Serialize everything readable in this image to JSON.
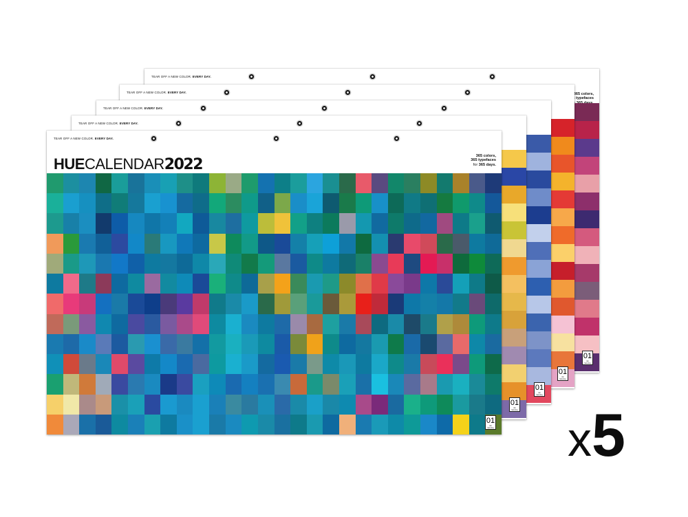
{
  "tagline": {
    "prefix": "TEAR OFF A NEW COLOR. ",
    "bold": "EVERY DAY."
  },
  "brand": {
    "hue": "HUE",
    "calendar": "CALENDAR",
    "year": "2022"
  },
  "blurb": {
    "line1": "365 colors,",
    "line2": "365 typefaces",
    "line3_lite": "for ",
    "line3_bold": "365 days."
  },
  "day_box": {
    "number": "01",
    "caption_line1": "Jan",
    "caption_line2": "Saturday"
  },
  "multiplier": {
    "x": "x",
    "count": "5"
  },
  "sheets": [
    {
      "name": "sheet-5",
      "palette": [
        "#7a2a55",
        "#b8234a",
        "#5b3a8c",
        "#c2447a",
        "#e8a0a8",
        "#8d2f6b",
        "#3d2a70",
        "#d45a7e",
        "#f0b2b8",
        "#a63a6a",
        "#7b5d79",
        "#e07a8a",
        "#c0326a",
        "#f6c0c4",
        "#5a2f6e"
      ]
    },
    {
      "name": "sheet-4",
      "palette": [
        "#d6232a",
        "#f08a1c",
        "#e8552b",
        "#f4b32c",
        "#e43a35",
        "#f7a84a",
        "#ef6b2a",
        "#fbd06a",
        "#c61f2b",
        "#f39c3e",
        "#e0582e",
        "#f5c2d4",
        "#f7e1a0",
        "#e8763a",
        "#e4a3c5"
      ]
    },
    {
      "name": "sheet-3",
      "palette": [
        "#3a5aa8",
        "#9fb3de",
        "#2a4a9e",
        "#6f8cc9",
        "#1c3d8f",
        "#c2d0ec",
        "#4f6fb8",
        "#8aa3d6",
        "#2d5fb0",
        "#b7c7e8",
        "#3b64ae",
        "#7d93c8",
        "#5c79bd",
        "#a8b8df",
        "#e2485e"
      ]
    },
    {
      "name": "sheet-2",
      "palette": [
        "#f5c84a",
        "#2a47a6",
        "#e8a82a",
        "#f7e07a",
        "#c9c436",
        "#f0d890",
        "#ef9a2e",
        "#f4c060",
        "#e6b84a",
        "#d8a23a",
        "#c8a07a",
        "#a08ab0",
        "#f2d070",
        "#e6912a",
        "#7d6aa8"
      ]
    }
  ],
  "front_grid": [
    [
      "#209a6e",
      "#1c8fa0",
      "#1d86b0",
      "#106744",
      "#1a9d9a",
      "#19739a",
      "#1a8fb8",
      "#18a0b4",
      "#1e8f88",
      "#0f7a7c",
      "#8db436",
      "#9aaa86",
      "#1e9b6c",
      "#1472b0",
      "#0d7f88",
      "#1b9d9c",
      "#2ba5df",
      "#1a8f92",
      "#2a6a4a",
      "#e85a6a",
      "#5a4a80",
      "#12876a",
      "#2a7f60",
      "#8d8a26",
      "#137a6e",
      "#a9822a",
      "#4a5a8a",
      "#1e3a78"
    ],
    [
      "#1ab09a",
      "#1a9fd0",
      "#1690c0",
      "#0f6e88",
      "#107c78",
      "#15789c",
      "#1aa0d0",
      "#1892d0",
      "#156aa0",
      "#0f6c8a",
      "#12a87a",
      "#2c8c60",
      "#0f9a8a",
      "#116088",
      "#7ca84a",
      "#1a8ec8",
      "#1aa4d8",
      "#0e5a70",
      "#1a7a4a",
      "#0e9a78",
      "#1890c8",
      "#0d6a58",
      "#107a86",
      "#0f6f74",
      "#157a40",
      "#109a6c",
      "#0f8a8a",
      "#14589a"
    ],
    [
      "#1d9a8e",
      "#1880a8",
      "#1b8ec0",
      "#123a6c",
      "#0e5ca8",
      "#1688c0",
      "#1076a8",
      "#1380b8",
      "#12a8c0",
      "#0e5a98",
      "#1888a0",
      "#1e6ea0",
      "#0f9aa0",
      "#bcbd3a",
      "#f0c23a",
      "#12a088",
      "#0e8080",
      "#0c7a5c",
      "#9a9aaa",
      "#1498b0",
      "#116aa0",
      "#0e7a6a",
      "#0e6a8a",
      "#1268a0",
      "#a04a80",
      "#0e7a88",
      "#1aa08c",
      "#0f5a70"
    ],
    [
      "#f09a5a",
      "#2a9a3a",
      "#1a7ab0",
      "#116098",
      "#2c4aa0",
      "#1288c8",
      "#2a7a78",
      "#1898c0",
      "#1078b8",
      "#0e6aa0",
      "#c8c848",
      "#0e8a5c",
      "#129a88",
      "#0e5888",
      "#1a4a98",
      "#1480a8",
      "#16a0b8",
      "#0ea0d8",
      "#1278a8",
      "#0e6a40",
      "#1490b0",
      "#2a3a70",
      "#e84a6a",
      "#d04a5a",
      "#2a6a4a",
      "#4a5a6a",
      "#0e7aa0",
      "#0f6a98"
    ],
    [
      "#a0aa7a",
      "#1a9a88",
      "#1e98b8",
      "#1a78b0",
      "#1278c8",
      "#1060a8",
      "#0e7aa0",
      "#1478a0",
      "#0e6a98",
      "#0f88a8",
      "#2aa8b8",
      "#0f8a78",
      "#127a4a",
      "#149a7a",
      "#5a78a0",
      "#1a5aa0",
      "#0e8a88",
      "#0e7aa0",
      "#0f6a78",
      "#1a8068",
      "#8a4a90",
      "#e83a58",
      "#1e4a80",
      "#e41a54",
      "#c8306a",
      "#0e6a3c",
      "#0e8a3a",
      "#0e6a58"
    ],
    [
      "#0e7aa0",
      "#f06a8a",
      "#1e7a88",
      "#8c3a5a",
      "#0e6aa0",
      "#0f8aa0",
      "#9a6aa0",
      "#128aa0",
      "#0e8ab8",
      "#1a4a98",
      "#1ab07a",
      "#0f8a8a",
      "#0e6a98",
      "#a8a04a",
      "#f4a21a",
      "#3a8a5a",
      "#1a9ab0",
      "#1e9a88",
      "#8c8a2a",
      "#e0704a",
      "#e03a48",
      "#8a4a9a",
      "#7a3a8a",
      "#0e78a8",
      "#2a4a98",
      "#14a0b8",
      "#0e7a88",
      "#0e5a48"
    ],
    [
      "#f06a6a",
      "#e83a7a",
      "#c83a7a",
      "#1470c0",
      "#1a7aa8",
      "#1a4a98",
      "#0e3e8a",
      "#4a3a7a",
      "#5a3aa0",
      "#c03a6a",
      "#107a8a",
      "#1a8aa8",
      "#1a9ac8",
      "#2a6a4a",
      "#a09a3a",
      "#5aa07a",
      "#1a9a9a",
      "#6a5a3a",
      "#aa9a3a",
      "#e8201a",
      "#c02a3a",
      "#1a3a78",
      "#0e78a8",
      "#1480a8",
      "#1478a8",
      "#127a8a",
      "#6a4a7a",
      "#0e6a6a"
    ],
    [
      "#c06a5a",
      "#7a9a7a",
      "#8a5aa0",
      "#1088b0",
      "#0f6aa0",
      "#4a4aa0",
      "#2a5aa0",
      "#7a5aa0",
      "#aa4a8a",
      "#e04a7a",
      "#0e8aa0",
      "#1ab0d0",
      "#1a8ac0",
      "#0e7aa0",
      "#1e6aa8",
      "#9a8aaa",
      "#a86a40",
      "#1ea0a0",
      "#1a7aa8",
      "#a84a5a",
      "#0e6a80",
      "#1a8aa8",
      "#1e4a68",
      "#1a7a8a",
      "#b0a04a",
      "#ae8a3a",
      "#0e9a7a",
      "#0e7a8a"
    ],
    [
      "#1a7ab0",
      "#1e6aa8",
      "#1a8ac8",
      "#5a7ab8",
      "#1c5aa0",
      "#2a9ab0",
      "#1a90d0",
      "#3a6aa8",
      "#3a7aa0",
      "#1470a8",
      "#129aa0",
      "#1ab0c0",
      "#1a9ab8",
      "#0e8aa0",
      "#1a5aa8",
      "#7a8a3a",
      "#f0a21a",
      "#0e8a8a",
      "#0e6aa0",
      "#1478a0",
      "#1a9ab0",
      "#0e7a4a",
      "#1a6aa8",
      "#1a4a70",
      "#5a6aa0",
      "#e86a6a",
      "#0e88a8",
      "#1a6aa0"
    ],
    [
      "#1090b8",
      "#d04a3a",
      "#6a7a8a",
      "#1a88b8",
      "#e04a6a",
      "#5a4aa0",
      "#0e7aa8",
      "#1488c8",
      "#1a6ab0",
      "#4a6aa0",
      "#0e9aa0",
      "#1ab0d0",
      "#1a9ac8",
      "#146aa0",
      "#1a5ab0",
      "#1a7aa8",
      "#7a9a8a",
      "#0e8aa8",
      "#1a98b8",
      "#0e7aa0",
      "#1aa8c8",
      "#0e8a8a",
      "#1a7aa8",
      "#c84a5a",
      "#ea305a",
      "#7a4a8a",
      "#0e9a7a",
      "#0e6a4a"
    ],
    [
      "#1aa070",
      "#c0b87a",
      "#d07a3a",
      "#a0aab8",
      "#3a4aa0",
      "#2a7ab0",
      "#1a8ac0",
      "#1a3a88",
      "#3a4aa0",
      "#1aa0c0",
      "#0e8ab8",
      "#1a6ab0",
      "#1480c0",
      "#1a70b0",
      "#3a8ab0",
      "#c86a3a",
      "#1a9a8a",
      "#7a8a6a",
      "#1aa0b8",
      "#1a70a8",
      "#1ac0e0",
      "#1a88b8",
      "#5a6aa0",
      "#a87a8a",
      "#1a9ab0",
      "#1ab0c0",
      "#1a8a98",
      "#0e7a6a"
    ],
    [
      "#f6d06a",
      "#f0e8a8",
      "#aa8a8a",
      "#c89a7a",
      "#1a90a8",
      "#1aa0b8",
      "#2a4aa0",
      "#1a9ad0",
      "#1a8ac0",
      "#1aa0d0",
      "#1a80b8",
      "#3a8aa0",
      "#2a7aa0",
      "#1a90b8",
      "#2a6aa8",
      "#1a8aa8",
      "#1aa0c8",
      "#1a88a8",
      "#0e8ab0",
      "#a84a8a",
      "#7a2a7a",
      "#1a6aa0",
      "#1ab08a",
      "#0e9a7a",
      "#0e8a5a",
      "#1a9aa0",
      "#1a7a8a",
      "#0e6a80"
    ],
    [
      "#f08a3a",
      "#aaa8b8",
      "#1a70a8",
      "#1a5a98",
      "#0e8aa0",
      "#1a80b8",
      "#1aa0b0",
      "#0e7aa0",
      "#1a90c8",
      "#1aa0d0",
      "#1a7aa8",
      "#1a8ac0",
      "#0e9ab0",
      "#1a8aa8",
      "#1a70a0",
      "#0e7a8a",
      "#1a9ab0",
      "#0e6aa0",
      "#f0b07a",
      "#1a7ab0",
      "#1a9ab8",
      "#0e8aa8",
      "#0e9a98",
      "#1a88c8",
      "#0e6aa8",
      "#f4d21a",
      "#0e7a8a",
      "#5a7a2a"
    ]
  ]
}
